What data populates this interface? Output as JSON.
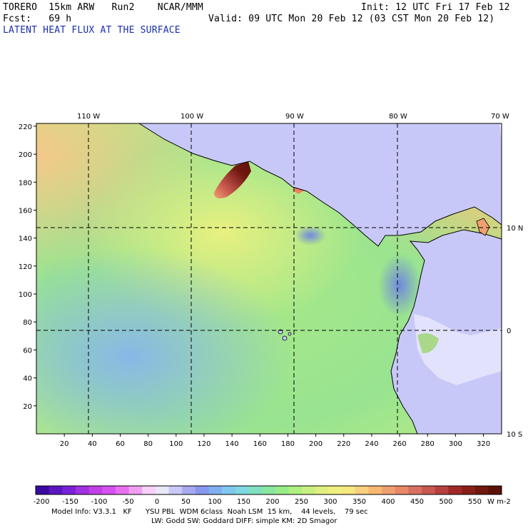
{
  "header": {
    "model": "TORERO  15km ARW   Run2    NCAR/MMM",
    "init": "Init: 12 UTC Fri 17 Feb 12",
    "fcst": "Fcst:   69 h",
    "valid": "Valid: 09 UTC Mon 20 Feb 12 (03 CST Mon 20 Feb 12)",
    "field_title": "LATENT HEAT FLUX AT THE SURFACE"
  },
  "map": {
    "x_ticks": [
      "20",
      "40",
      "60",
      "80",
      "100",
      "120",
      "140",
      "160",
      "180",
      "200",
      "220",
      "240",
      "260",
      "280",
      "300",
      "320"
    ],
    "y_ticks": [
      "20",
      "40",
      "60",
      "80",
      "100",
      "120",
      "140",
      "160",
      "180",
      "200",
      "220"
    ],
    "lon_labels": [
      "110 W",
      "100 W",
      "90 W",
      "80 W",
      "70 W"
    ],
    "lat_labels": [
      "10 N",
      "0",
      "10 S"
    ]
  },
  "colorbar": {
    "labels": [
      "-200",
      "-150",
      "-100",
      "-50",
      "0",
      "50",
      "100",
      "150",
      "200",
      "250",
      "300",
      "350",
      "400",
      "450",
      "500",
      "550"
    ],
    "units": "W m-2",
    "colors": [
      "#3a0aa0",
      "#5a16c0",
      "#7a20d8",
      "#a030e0",
      "#c040e8",
      "#d850f0",
      "#e870f0",
      "#f0a0f0",
      "#f8d0f8",
      "#e8e8f8",
      "#c8c8f8",
      "#a8a8f0",
      "#8898f0",
      "#80b0f0",
      "#80c8f0",
      "#80d8e0",
      "#80e0c0",
      "#88e8a0",
      "#98ec88",
      "#b0f080",
      "#c8f080",
      "#e0f080",
      "#f0f080",
      "#f8e880",
      "#f8d080",
      "#f8b870",
      "#f0a070",
      "#e88868",
      "#d87060",
      "#c85850",
      "#b84040",
      "#a02828",
      "#882018",
      "#701810",
      "#5a1008"
    ]
  },
  "footer": {
    "line1": "Model Info: V3.3.1   KF      YSU PBL  WDM 6class  Noah LSM  15 km,    44 levels,    79 sec",
    "line2": "LW: Godd SW: Goddard DIFF: simple KM: 2D Smagor"
  }
}
